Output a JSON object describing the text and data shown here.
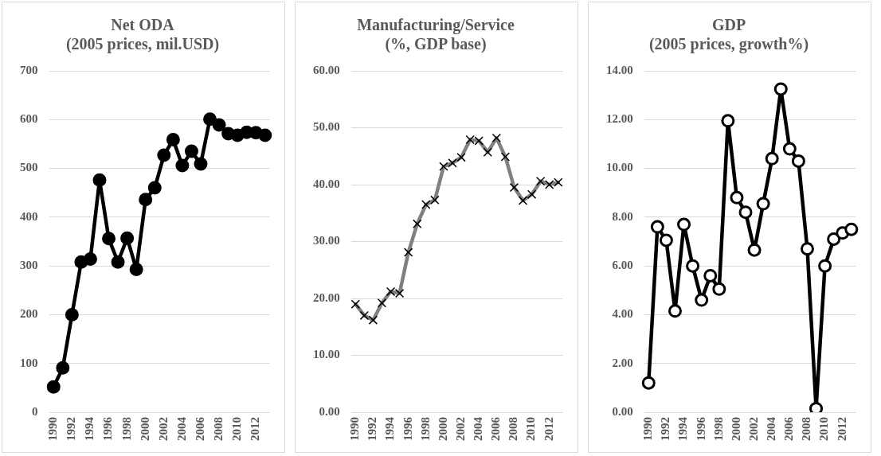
{
  "chart_data": [
    {
      "type": "line",
      "title": "Net ODA\n(2005 prices, mil.USD)",
      "categories": [
        "1990",
        null,
        "1992",
        null,
        "1994",
        null,
        "1996",
        null,
        "1998",
        null,
        "2000",
        null,
        "2002",
        null,
        "2004",
        null,
        "2006",
        null,
        "2008",
        null,
        "2010",
        null,
        "2012",
        null
      ],
      "series": [
        {
          "color": "#000000",
          "values": [
            52,
            91,
            200,
            308,
            314,
            476,
            356,
            308,
            357,
            293,
            436,
            460,
            527,
            559,
            506,
            535,
            509,
            601,
            589,
            571,
            568,
            574,
            573,
            568
          ]
        }
      ],
      "ylim": [
        0,
        700
      ],
      "yticks": [
        0,
        100,
        200,
        300,
        400,
        500,
        600,
        700
      ],
      "grid": "y",
      "legend": false,
      "marker": "circle",
      "line_style": "solid"
    },
    {
      "type": "line",
      "title": "Manufacturing/Service\n(%, GDP base)",
      "categories": [
        "1990",
        null,
        "1992",
        null,
        "1994",
        null,
        "1996",
        null,
        "1998",
        null,
        "2000",
        null,
        "2002",
        null,
        "2004",
        null,
        "2006",
        null,
        "2008",
        null,
        "2010",
        null,
        "2012",
        null
      ],
      "series": [
        {
          "color": "#808080",
          "values": [
            19.0,
            17.0,
            16.2,
            19.2,
            21.2,
            20.9,
            28.1,
            33.1,
            36.5,
            37.3,
            43.2,
            43.8,
            44.8,
            47.9,
            47.7,
            45.7,
            48.2,
            44.9,
            39.5,
            37.2,
            38.3,
            40.6,
            40.0,
            40.4
          ]
        }
      ],
      "ylim": [
        0,
        60
      ],
      "yticks": [
        {
          "value": 0,
          "label": "0.00"
        },
        {
          "value": 10,
          "label": "10.00"
        },
        {
          "value": 20,
          "label": "20.00"
        },
        {
          "value": 30,
          "label": "30.00"
        },
        {
          "value": 40,
          "label": "40.00"
        },
        {
          "value": 50,
          "label": "50.00"
        },
        {
          "value": 60,
          "label": "60.00"
        }
      ],
      "grid": "y",
      "legend": false,
      "marker": "cross",
      "line_style": "solid"
    },
    {
      "type": "line",
      "title": "GDP\n(2005 prices, growth%)",
      "categories": [
        "1990",
        null,
        "1992",
        null,
        "1994",
        null,
        "1996",
        null,
        "1998",
        null,
        "2000",
        null,
        "2002",
        null,
        "2004",
        null,
        "2006",
        null,
        "2008",
        null,
        "2010",
        null,
        "2012",
        null
      ],
      "series": [
        {
          "color": "#000000",
          "values": [
            1.2,
            7.6,
            7.05,
            4.15,
            7.7,
            6.0,
            4.6,
            5.6,
            5.05,
            11.95,
            8.8,
            8.2,
            6.65,
            8.55,
            10.4,
            13.25,
            10.8,
            10.3,
            6.7,
            0.15,
            6.0,
            7.1,
            7.35,
            7.5
          ]
        }
      ],
      "ylim": [
        0,
        14
      ],
      "yticks": [
        {
          "value": 0,
          "label": "0.00"
        },
        {
          "value": 2,
          "label": "2.00"
        },
        {
          "value": 4,
          "label": "4.00"
        },
        {
          "value": 6,
          "label": "6.00"
        },
        {
          "value": 8,
          "label": "8.00"
        },
        {
          "value": 10,
          "label": "10.00"
        },
        {
          "value": 12,
          "label": "12.00"
        },
        {
          "value": 14,
          "label": "14.00"
        }
      ],
      "grid": "y",
      "legend": false,
      "marker": "circle",
      "line_style": "solid"
    }
  ]
}
